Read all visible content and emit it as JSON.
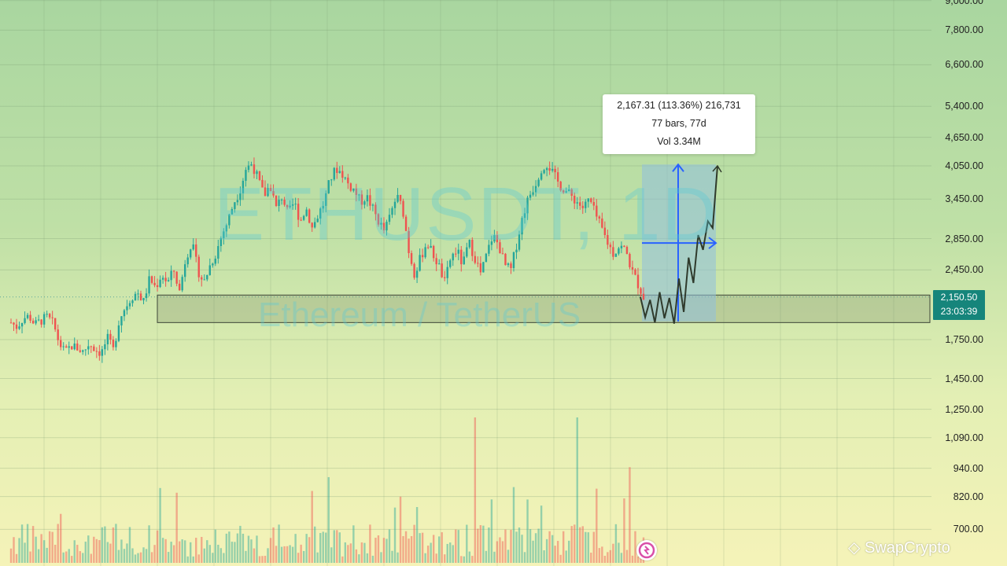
{
  "watermark": {
    "symbol": "ETHUSDT, 1D",
    "name": "Ethereum / TetherUS"
  },
  "measure_tooltip": {
    "line1": "2,167.31 (113.36%) 216,731",
    "line2": "77 bars, 77d",
    "line3": "Vol 3.34M"
  },
  "current_price": {
    "price": "2,150.50",
    "countdown": "23:03:39",
    "color": "#16857b"
  },
  "logo": {
    "text": "SwapCrypto"
  },
  "colors": {
    "up": "#26a69a",
    "down": "#ef5350",
    "measure_box": "#8fbfdf",
    "measure_arrow": "#2962ff",
    "zone": "#6e7a60"
  },
  "chart_data": {
    "type": "candlestick",
    "symbol": "ETHUSDT",
    "interval": "1D",
    "y_scale": "log",
    "ylim": [
      650,
      9000
    ],
    "y_ticks": [
      "9,000.00",
      "7,800.00",
      "6,600.00",
      "5,400.00",
      "4,650.00",
      "4,050.00",
      "3,450.00",
      "2,850.00",
      "2,450.00",
      "1,750.00",
      "1,450.00",
      "1,250.00",
      "1,090.00",
      "940.00",
      "820.00",
      "700.00"
    ],
    "support_zone": {
      "low": 1900,
      "high": 2170
    },
    "measure": {
      "from": 1910,
      "to": 4077,
      "change": 2167.31,
      "percent": 113.36,
      "bars": 77
    },
    "projection": [
      2150,
      1950,
      2120,
      1900,
      2200,
      1940,
      2140,
      1890,
      2350,
      2000,
      2600,
      2300,
      2900,
      2700,
      3100,
      3000,
      4050
    ],
    "price_path": [
      1900,
      1860,
      1940,
      1960,
      1880,
      1920,
      1950,
      1890,
      1720,
      1640,
      1700,
      1680,
      1650,
      1720,
      1670,
      1640,
      1760,
      1660,
      1940,
      2050,
      2150,
      2200,
      2100,
      2350,
      2250,
      2400,
      2300,
      2450,
      2200,
      2600,
      2800,
      2450,
      2300,
      2500,
      2650,
      2900,
      3100,
      3400,
      3600,
      4000,
      4100,
      3800,
      3500,
      3700,
      3300,
      3500,
      3200,
      3400,
      3100,
      3300,
      3000,
      3200,
      3400,
      3800,
      4000,
      3900,
      3700,
      3600,
      3400,
      3500,
      3300,
      3100,
      2950,
      3200,
      3500,
      3300,
      2700,
      2400,
      2600,
      2800,
      2650,
      2500,
      2300,
      2600,
      2700,
      2500,
      2800,
      2600,
      2400,
      2650,
      2900,
      2750,
      2500,
      2450,
      2800,
      3200,
      3500,
      3700,
      4000,
      4100,
      3900,
      3700,
      3600,
      3500,
      3400,
      3300,
      3450,
      3200,
      3000,
      2800,
      2650,
      2750,
      2700,
      2450,
      2300,
      2150
    ]
  }
}
